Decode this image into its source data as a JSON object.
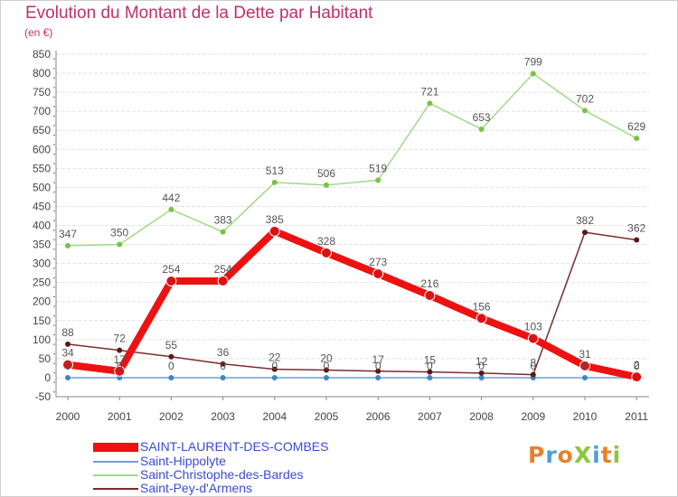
{
  "title": "Evolution du Montant de la Dette par Habitant",
  "unit_label": "(en €)",
  "logo": {
    "text": "ProXiti",
    "colors": [
      "#e8812c",
      "#4aa0d8",
      "#e8812c",
      "#8cc63e",
      "#4aa0d8",
      "#e8812c",
      "#8cc63e"
    ]
  },
  "chart_data": {
    "type": "line",
    "x": [
      "2000",
      "2001",
      "2002",
      "2003",
      "2004",
      "2005",
      "2006",
      "2007",
      "2008",
      "2009",
      "2010",
      "2011"
    ],
    "ylim": [
      -50,
      850
    ],
    "yticks": [
      -50,
      0,
      50,
      100,
      150,
      200,
      250,
      300,
      350,
      400,
      450,
      500,
      550,
      600,
      650,
      700,
      750,
      800,
      850
    ],
    "grid": "horizontal",
    "legend_position": "bottom-left",
    "series": [
      {
        "name": "SAINT-LAURENT-DES-COMBES",
        "color": "#ee1111",
        "marker_color": "#dd1111",
        "values": [
          34,
          17,
          254,
          254,
          385,
          328,
          273,
          216,
          156,
          103,
          31,
          2
        ],
        "labels": [
          "34",
          "17",
          "254",
          "254",
          "385",
          "328",
          "273",
          "216",
          "156",
          "103",
          "31",
          "2"
        ]
      },
      {
        "name": "Saint-Hippolyte",
        "color": "#6fa0d0",
        "marker_color": "#3d86c6",
        "values": [
          0,
          0,
          0,
          0,
          0,
          0,
          0,
          0,
          0,
          0,
          0,
          0
        ],
        "labels": [
          "0",
          "0",
          "0",
          "0",
          "0",
          "0",
          "0",
          "0",
          "0",
          "0",
          "0",
          "0"
        ]
      },
      {
        "name": "Saint-Christophe-des-Bardes",
        "color": "#a3d98a",
        "marker_color": "#77c343",
        "values": [
          347,
          350,
          442,
          383,
          513,
          506,
          519,
          721,
          653,
          799,
          702,
          629
        ],
        "labels": [
          "347",
          "350",
          "442",
          "383",
          "513",
          "506",
          "519",
          "721",
          "653",
          "799",
          "702",
          "629"
        ]
      },
      {
        "name": "Saint-Pey-d'Armens",
        "color": "#7a2e2e",
        "marker_color": "#5e1717",
        "values": [
          88,
          72,
          55,
          36,
          22,
          20,
          17,
          15,
          12,
          8,
          382,
          362
        ],
        "labels": [
          "88",
          "72",
          "55",
          "36",
          "22",
          "20",
          "17",
          "15",
          "12",
          "8",
          "382",
          "362"
        ]
      }
    ]
  }
}
